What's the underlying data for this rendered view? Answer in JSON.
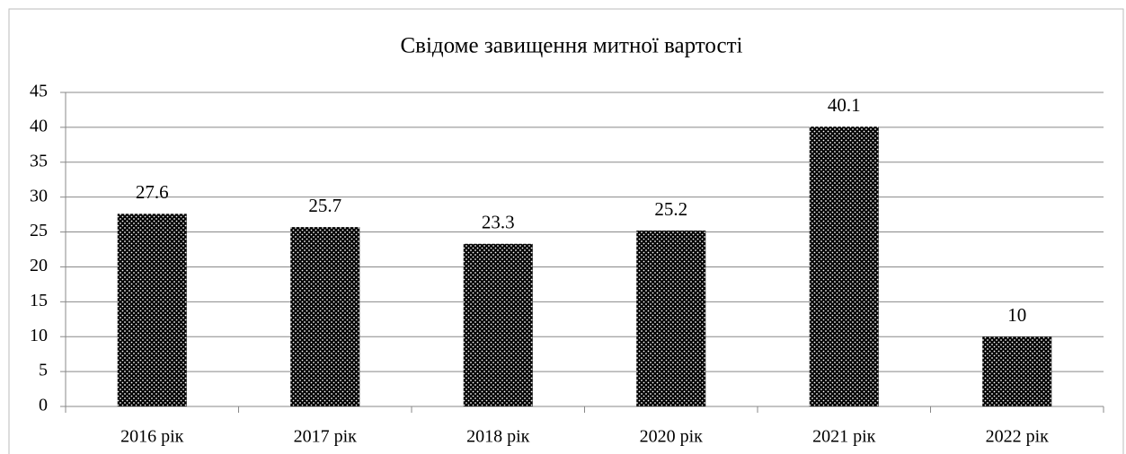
{
  "chart_data": {
    "type": "bar",
    "title": "Свідоме завищення митної вартості",
    "categories": [
      "2016 рік",
      "2017 рік",
      "2018 рік",
      "2020 рік",
      "2021 рік",
      "2022 рік"
    ],
    "values": [
      27.6,
      25.7,
      23.3,
      25.2,
      40.1,
      10
    ],
    "color": "#000000",
    "ylim": [
      0,
      45
    ],
    "yticks": [
      0,
      5,
      10,
      15,
      20,
      25,
      30,
      35,
      40,
      45
    ],
    "grid": true
  }
}
